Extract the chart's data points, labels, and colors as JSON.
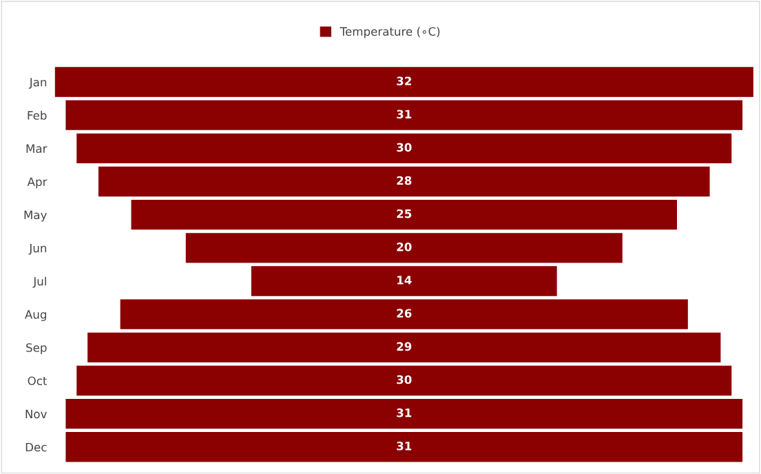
{
  "chart_data": {
    "type": "other",
    "categories": [
      "Jan",
      "Feb",
      "Mar",
      "Apr",
      "May",
      "Jun",
      "Jul",
      "Aug",
      "Sep",
      "Oct",
      "Nov",
      "Dec"
    ],
    "series": [
      {
        "name": "Temperature (∘C)",
        "color": "#8b0000",
        "values": [
          32,
          31,
          30,
          28,
          25,
          20,
          14,
          26,
          29,
          30,
          31,
          31
        ]
      }
    ],
    "data_labels": true,
    "legend": "top"
  }
}
